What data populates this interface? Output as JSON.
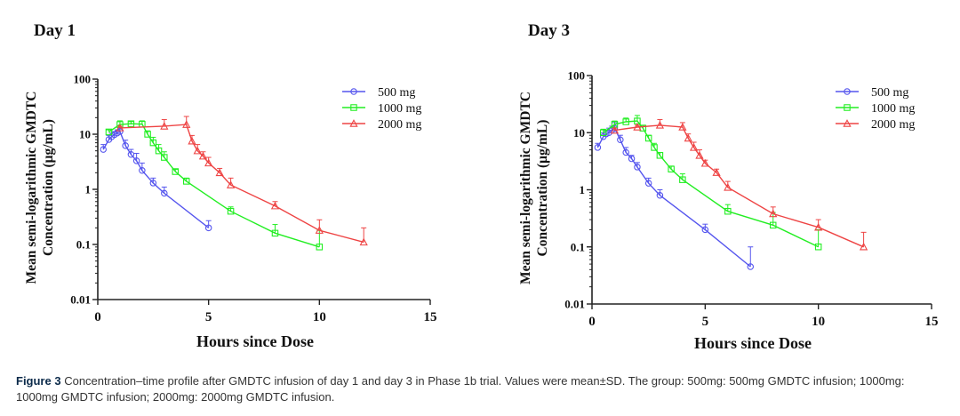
{
  "colors": {
    "500 mg": "#5555ee",
    "1000 mg": "#22ee22",
    "2000 mg": "#ee4444",
    "axis": "#222222"
  },
  "caption": {
    "label": "Figure 3",
    "text": "Concentration–time profile after GMDTC infusion of day 1 and day 3 in Phase 1b trial. Values were mean±SD. The group: 500mg: 500mg GMDTC infusion; 1000mg: 1000mg GMDTC infusion; 2000mg: 2000mg GMDTC infusion."
  },
  "chart_data": [
    {
      "type": "line",
      "title": "Day 1",
      "xlabel": "Hours since Dose",
      "ylabel": [
        "Mean semi-logarithmic GMDTC",
        "Concentration (μg/mL)"
      ],
      "xlim": [
        0,
        15
      ],
      "ylim": [
        0.01,
        100
      ],
      "yscale": "log",
      "xticks": [
        0,
        5,
        10,
        15
      ],
      "yticks": [
        0.01,
        0.1,
        1,
        10,
        100
      ],
      "ytick_labels": [
        "0.01",
        "0.1",
        "1",
        "10",
        "100"
      ],
      "grid": false,
      "legend_position": "top-right",
      "series": [
        {
          "name": "500 mg",
          "marker": "circle",
          "x": [
            0.25,
            0.5,
            0.625,
            0.75,
            0.875,
            1.0,
            1.25,
            1.5,
            1.75,
            2.0,
            2.5,
            3.0,
            5.0
          ],
          "y": [
            5.3,
            8.0,
            9.0,
            9.8,
            10.5,
            11.2,
            6.2,
            4.3,
            3.3,
            2.2,
            1.3,
            0.85,
            0.2
          ],
          "sd_upper": [
            6.5,
            9.5,
            10.5,
            11.2,
            12.0,
            13.0,
            7.8,
            5.3,
            4.5,
            3.0,
            1.6,
            1.1,
            0.27
          ]
        },
        {
          "name": "1000 mg",
          "marker": "square",
          "x": [
            0.5,
            1.0,
            1.5,
            2.0,
            2.25,
            2.5,
            2.75,
            3.0,
            3.5,
            4.0,
            6.0,
            8.0,
            10.0
          ],
          "y": [
            11.0,
            15.0,
            15.5,
            15.2,
            10.0,
            7.0,
            5.0,
            3.8,
            2.1,
            1.4,
            0.4,
            0.16,
            0.09
          ],
          "sd_upper": [
            12.0,
            17.5,
            17.0,
            17.5,
            11.5,
            8.8,
            6.5,
            4.8,
            2.3,
            1.6,
            0.48,
            0.23,
            0.18
          ]
        },
        {
          "name": "2000 mg",
          "marker": "triangle",
          "x": [
            1.0,
            3.0,
            4.0,
            4.25,
            4.5,
            4.75,
            5.0,
            5.5,
            6.0,
            8.0,
            10.0,
            12.0
          ],
          "y": [
            13.0,
            14.0,
            15.0,
            7.5,
            5.0,
            4.0,
            3.0,
            2.0,
            1.2,
            0.5,
            0.18,
            0.11
          ],
          "sd_upper": [
            14.0,
            18.5,
            21.0,
            9.5,
            6.5,
            4.8,
            3.8,
            2.4,
            1.6,
            0.6,
            0.28,
            0.2
          ]
        }
      ]
    },
    {
      "type": "line",
      "title": "Day 3",
      "xlabel": "Hours since Dose",
      "ylabel": [
        "Mean semi-logarithmic GMDTC",
        "Concentration (μg/mL)"
      ],
      "xlim": [
        0,
        15
      ],
      "ylim": [
        0.01,
        100
      ],
      "yscale": "log",
      "xticks": [
        0,
        5,
        10,
        15
      ],
      "yticks": [
        0.01,
        0.1,
        1,
        10,
        100
      ],
      "ytick_labels": [
        "0.01",
        "0.1",
        "1",
        "10",
        "100"
      ],
      "grid": false,
      "legend_position": "top-right",
      "series": [
        {
          "name": "500 mg",
          "marker": "circle",
          "x": [
            0.25,
            0.5,
            0.625,
            0.75,
            0.875,
            1.0,
            1.25,
            1.5,
            1.75,
            2.0,
            2.5,
            3.0,
            5.0,
            7.0
          ],
          "y": [
            5.5,
            8.5,
            9.5,
            10.0,
            11.0,
            12.0,
            7.5,
            4.5,
            3.5,
            2.5,
            1.3,
            0.8,
            0.2,
            0.045
          ],
          "sd_upper": [
            6.5,
            10.0,
            11.0,
            12.0,
            13.0,
            15.0,
            9.0,
            5.5,
            4.0,
            3.0,
            1.6,
            1.0,
            0.25,
            0.1
          ]
        },
        {
          "name": "1000 mg",
          "marker": "square",
          "x": [
            0.5,
            1.0,
            1.5,
            2.0,
            2.25,
            2.5,
            2.75,
            3.0,
            3.5,
            4.0,
            6.0,
            8.0,
            10.0
          ],
          "y": [
            10.0,
            14.0,
            15.5,
            16.0,
            12.0,
            8.0,
            5.5,
            4.0,
            2.3,
            1.5,
            0.42,
            0.24,
            0.1
          ],
          "sd_upper": [
            11.5,
            16.0,
            18.0,
            20.0,
            13.5,
            9.0,
            6.5,
            4.5,
            2.6,
            1.9,
            0.55,
            0.4,
            0.2
          ]
        },
        {
          "name": "2000 mg",
          "marker": "triangle",
          "x": [
            1.0,
            2.0,
            3.0,
            4.0,
            4.25,
            4.5,
            4.75,
            5.0,
            5.5,
            6.0,
            8.0,
            10.0,
            12.0
          ],
          "y": [
            11.0,
            12.5,
            13.5,
            12.5,
            8.0,
            5.5,
            4.0,
            2.9,
            2.0,
            1.1,
            0.38,
            0.22,
            0.1
          ],
          "sd_upper": [
            12.0,
            13.5,
            17.0,
            15.0,
            9.5,
            6.8,
            5.0,
            3.3,
            2.3,
            1.4,
            0.5,
            0.3,
            0.18
          ]
        }
      ]
    }
  ]
}
